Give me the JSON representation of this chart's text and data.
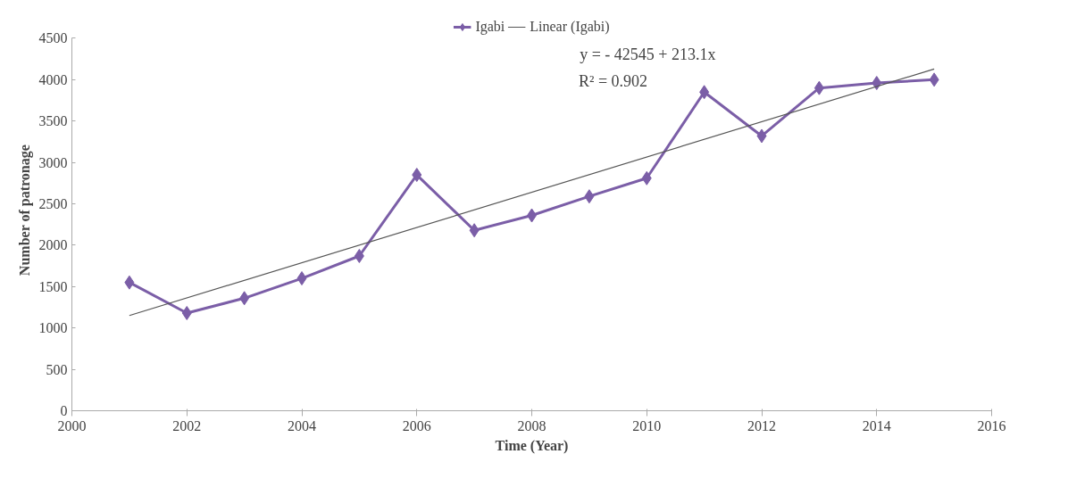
{
  "chart_data": {
    "type": "line",
    "xlabel": "Time (Year)",
    "ylabel": "Number of patronage",
    "annotations": [
      "y = - 42545 + 213.1x",
      "R² = 0.902"
    ],
    "series": [
      {
        "name": "Igabi",
        "color": "#7b5ea7",
        "marker": "diamond",
        "x": [
          2001,
          2002,
          2003,
          2004,
          2005,
          2006,
          2007,
          2008,
          2009,
          2010,
          2011,
          2012,
          2013,
          2014,
          2015
        ],
        "values": [
          1550,
          1180,
          1360,
          1600,
          1870,
          2850,
          2180,
          2360,
          2590,
          2810,
          3850,
          3320,
          3900,
          3960,
          4000
        ]
      },
      {
        "name": "Linear (Igabi)",
        "type": "line",
        "color": "#555555",
        "marker": "none",
        "x": [
          2001,
          2015
        ],
        "values": [
          1150,
          4130
        ]
      }
    ],
    "xlim": [
      2000,
      2016
    ],
    "xticks": [
      2000,
      2002,
      2004,
      2006,
      2008,
      2010,
      2012,
      2014,
      2016
    ],
    "ylim": [
      0,
      4500
    ],
    "yticks": [
      0,
      500,
      1000,
      1500,
      2000,
      2500,
      3000,
      3500,
      4000,
      4500
    ],
    "grid": false,
    "legend": "top"
  }
}
